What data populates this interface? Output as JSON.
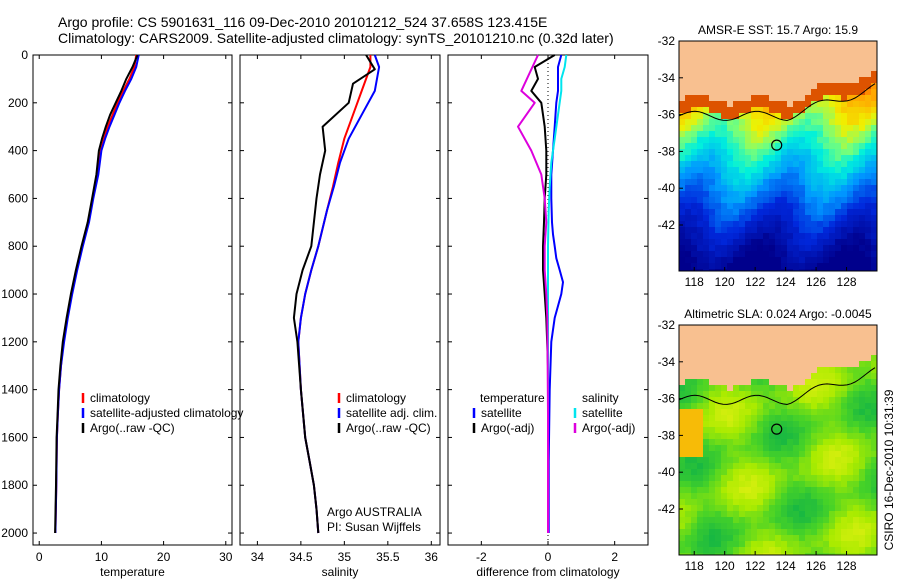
{
  "header": {
    "line1": "Argo profile: CS 5901631_116 09-Dec-2010 20101212_524 37.658S 123.415E",
    "line2": "Climatology: CARS2009. Satellite-adjusted climatology: synTS_20101210.nc (0.32d later)"
  },
  "side_label": "CSIRO 16-Dec-2010 10:31:39",
  "colors": {
    "climatology": "#ff0000",
    "satellite": "#0000ff",
    "argo": "#000000",
    "salinity_satellite": "#00e5ee",
    "salinity_argo": "#dd00dd",
    "land": "#f8c090"
  },
  "chart_data": [
    {
      "id": "temperature",
      "type": "line",
      "xlabel": "temperature",
      "ylabel": "",
      "xlim": [
        -1,
        31
      ],
      "ylim": [
        2050,
        0
      ],
      "y_reversed": true,
      "xticks": [
        0,
        10,
        20,
        30
      ],
      "yticks": [
        0,
        200,
        400,
        600,
        800,
        1000,
        1200,
        1400,
        1600,
        1800,
        2000
      ],
      "series": [
        {
          "name": "climatology",
          "color": "#ff0000",
          "x": [
            15.6,
            15.3,
            14.5,
            13.5,
            12.6,
            11.8,
            11.0,
            10.4,
            9.9,
            9.4,
            8.6,
            7.9,
            6.9,
            6.0,
            5.2,
            4.5,
            3.9,
            3.5,
            3.2,
            3.0,
            2.85,
            2.75,
            2.6
          ],
          "y": [
            0,
            50,
            100,
            150,
            200,
            250,
            300,
            350,
            400,
            500,
            600,
            700,
            800,
            900,
            1000,
            1100,
            1200,
            1300,
            1400,
            1500,
            1600,
            1800,
            2000
          ]
        },
        {
          "name": "satellite-adjusted climatology",
          "color": "#0000ff",
          "x": [
            16.0,
            15.6,
            14.8,
            13.8,
            12.9,
            12.1,
            11.3,
            10.6,
            10.0,
            9.5,
            8.7,
            8.0,
            7.0,
            6.1,
            5.3,
            4.6,
            4.0,
            3.5,
            3.2,
            3.0,
            2.85,
            2.75,
            2.6
          ],
          "y": [
            0,
            50,
            100,
            150,
            200,
            250,
            300,
            350,
            400,
            500,
            600,
            700,
            800,
            900,
            1000,
            1100,
            1200,
            1300,
            1400,
            1500,
            1600,
            1800,
            2000
          ]
        },
        {
          "name": "Argo(..raw -QC)",
          "color": "#000000",
          "x": [
            15.8,
            15.0,
            14.0,
            13.2,
            12.3,
            11.4,
            10.7,
            10.1,
            9.6,
            9.2,
            8.5,
            7.8,
            6.8,
            5.9,
            5.1,
            4.4,
            3.8,
            3.4,
            3.1,
            2.95,
            2.8,
            2.7,
            2.55
          ],
          "y": [
            0,
            50,
            100,
            150,
            200,
            250,
            300,
            350,
            400,
            500,
            600,
            700,
            800,
            900,
            1000,
            1100,
            1200,
            1300,
            1400,
            1500,
            1600,
            1800,
            2000
          ]
        }
      ],
      "legend": [
        "climatology",
        "satellite-adjusted climatology",
        "Argo(..raw -QC)"
      ]
    },
    {
      "id": "salinity",
      "type": "line",
      "xlabel": "salinity",
      "xlim": [
        33.8,
        36.1
      ],
      "ylim": [
        2050,
        0
      ],
      "y_reversed": true,
      "xticks": [
        34,
        34.5,
        35,
        35.5,
        36
      ],
      "xticklabels": [
        "34",
        "34.5",
        "35",
        "35.5",
        "36"
      ],
      "series": [
        {
          "name": "climatology",
          "color": "#ff0000",
          "x": [
            35.3,
            35.3,
            35.2,
            35.1,
            35.0,
            34.93,
            34.87,
            34.8,
            34.7,
            34.62,
            34.55,
            34.5,
            34.47,
            34.5,
            34.55,
            34.6,
            34.65,
            34.68,
            34.7
          ],
          "y": [
            0,
            50,
            150,
            250,
            350,
            450,
            550,
            650,
            800,
            900,
            1000,
            1100,
            1200,
            1400,
            1600,
            1700,
            1800,
            1900,
            2000
          ]
        },
        {
          "name": "satellite adj. clim.",
          "color": "#0000ff",
          "x": [
            35.35,
            35.4,
            35.35,
            35.2,
            35.05,
            34.95,
            34.88,
            34.8,
            34.7,
            34.62,
            34.55,
            34.5,
            34.47,
            34.5,
            34.55,
            34.6,
            34.65,
            34.68,
            34.7
          ],
          "y": [
            0,
            50,
            150,
            250,
            350,
            450,
            550,
            650,
            800,
            900,
            1000,
            1100,
            1200,
            1400,
            1600,
            1700,
            1800,
            1900,
            2000
          ]
        },
        {
          "name": "Argo(..raw -QC)",
          "color": "#000000",
          "x": [
            35.25,
            35.35,
            35.1,
            35.05,
            34.75,
            34.78,
            34.72,
            34.68,
            34.62,
            34.52,
            34.45,
            34.42,
            34.46,
            34.5,
            34.55,
            34.6,
            34.65,
            34.68,
            34.7
          ],
          "y": [
            0,
            60,
            120,
            200,
            300,
            400,
            500,
            600,
            800,
            900,
            1000,
            1100,
            1200,
            1400,
            1600,
            1700,
            1800,
            1900,
            2000
          ]
        }
      ],
      "legend": [
        "climatology",
        "satellite adj. clim.",
        "Argo(..raw -QC)"
      ],
      "annotation": [
        "Argo AUSTRALIA",
        "PI: Susan Wijffels"
      ]
    },
    {
      "id": "difference",
      "type": "line",
      "xlabel": "difference from climatology",
      "xlim": [
        -3.0,
        3.0
      ],
      "ylim": [
        2050,
        0
      ],
      "y_reversed": true,
      "xticks": [
        -2,
        0,
        2
      ],
      "series": [
        {
          "name": "temperature satellite",
          "color": "#0000ff",
          "x": [
            0.4,
            0.3,
            0.3,
            0.3,
            0.25,
            0.2,
            0.15,
            0.1,
            0.1,
            0.12,
            0.15,
            0.2,
            0.25,
            0.35,
            0.45,
            0.4,
            0.3,
            0.2,
            0.1,
            0.05,
            0.02,
            0.02
          ],
          "y": [
            0,
            50,
            100,
            150,
            200,
            300,
            400,
            500,
            600,
            700,
            750,
            800,
            850,
            900,
            950,
            1000,
            1050,
            1100,
            1200,
            1400,
            1700,
            2000
          ]
        },
        {
          "name": "temperature Argo(-adj)",
          "color": "#000000",
          "x": [
            0.2,
            -0.4,
            -0.3,
            -0.5,
            -0.2,
            -0.1,
            -0.05,
            -0.05,
            -0.1,
            -0.12,
            -0.15,
            -0.15,
            -0.1,
            -0.05,
            0.0,
            0.0,
            0.0
          ],
          "y": [
            0,
            50,
            100,
            150,
            200,
            300,
            400,
            500,
            600,
            700,
            800,
            900,
            1000,
            1100,
            1300,
            1700,
            2000
          ]
        },
        {
          "name": "salinity satellite",
          "color": "#00e5ee",
          "x": [
            0.55,
            0.5,
            0.4,
            0.4,
            0.3,
            0.2,
            0.1,
            0.05,
            0.02,
            0.0,
            0.0,
            0.0,
            0.0,
            0.0
          ],
          "y": [
            0,
            50,
            100,
            150,
            250,
            350,
            450,
            550,
            650,
            800,
            1000,
            1300,
            1700,
            2000
          ]
        },
        {
          "name": "salinity Argo(-adj)",
          "color": "#dd00dd",
          "x": [
            -0.3,
            -0.8,
            -0.4,
            -0.9,
            -0.5,
            -0.2,
            -0.1,
            -0.05,
            -0.1,
            -0.1,
            -0.05,
            -0.02,
            0.0,
            0.0
          ],
          "y": [
            0,
            150,
            200,
            300,
            400,
            500,
            600,
            700,
            800,
            900,
            1000,
            1100,
            1500,
            2000
          ]
        }
      ],
      "legend_headers": [
        "temperature",
        "salinity"
      ],
      "legend_left": [
        "satellite",
        "Argo(-adj)"
      ],
      "legend_right": [
        "satellite",
        "Argo(-adj)"
      ]
    },
    {
      "id": "sst-map",
      "type": "heatmap",
      "title": "AMSR-E SST: 15.7  Argo: 15.9",
      "xticks": [
        118,
        120,
        122,
        124,
        126,
        128
      ],
      "yticks": [
        -32,
        -34,
        -36,
        -38,
        -40,
        -42
      ],
      "xlim": [
        117,
        130
      ],
      "ylim": [
        -44.5,
        -32
      ],
      "marker": {
        "lon": 123.415,
        "lat": -37.658
      }
    },
    {
      "id": "sla-map",
      "type": "heatmap",
      "title": "Altimetric SLA: 0.024  Argo: -0.0045",
      "xticks": [
        118,
        120,
        122,
        124,
        126,
        128
      ],
      "yticks": [
        -32,
        -34,
        -36,
        -38,
        -40,
        -42
      ],
      "xlim": [
        117,
        130
      ],
      "ylim": [
        -44.5,
        -32
      ],
      "marker": {
        "lon": 123.415,
        "lat": -37.658
      }
    }
  ]
}
